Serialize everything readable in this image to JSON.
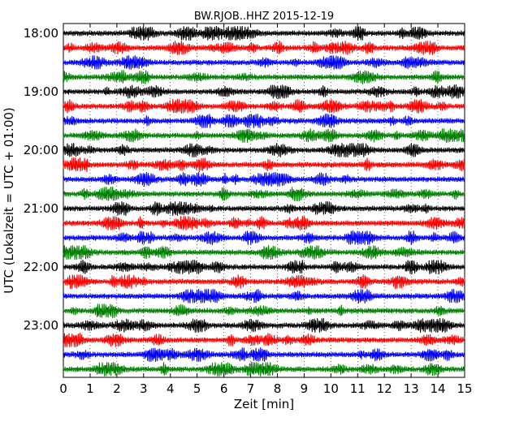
{
  "chart_data": {
    "type": "line",
    "title": "BW.RJOB..HHZ 2015-12-19",
    "xlabel": "Zeit  [min]",
    "ylabel": "UTC (Lokalzeit = UTC + 01:00)",
    "xlim": [
      0,
      15
    ],
    "x_ticks": [
      "0",
      "1",
      "2",
      "3",
      "4",
      "5",
      "6",
      "7",
      "8",
      "9",
      "10",
      "11",
      "12",
      "13",
      "14",
      "15"
    ],
    "y_ticks": [
      "18:00",
      "19:00",
      "20:00",
      "21:00",
      "22:00",
      "23:00"
    ],
    "traces_per_hour": 4,
    "trace_minutes": 15,
    "start_hour": "18:00",
    "trace_count": 24,
    "trace_colors": [
      "#000000",
      "#ff0000",
      "#0000ff",
      "#008000"
    ],
    "grid": "vertical dotted lines at each minute",
    "note": "Seismogram helicorder plot; each row is 15 minutes of vertical-component ground motion."
  }
}
